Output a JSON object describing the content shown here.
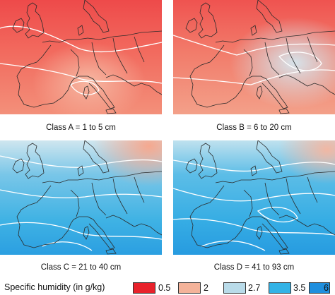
{
  "figure": {
    "panels": [
      {
        "id": "A",
        "caption": "Class A = 1 to 5 cm"
      },
      {
        "id": "B",
        "caption": "Class B = 6 to 20 cm"
      },
      {
        "id": "C",
        "caption": "Class C = 21 to 40 cm"
      },
      {
        "id": "D",
        "caption": "Class D = 41 to 93 cm"
      }
    ]
  },
  "legend": {
    "title": "Specific humidity  (in g/kg)",
    "entries": [
      {
        "label": "0.5",
        "color": "#e8222b"
      },
      {
        "label": "2",
        "color": "#f4b39a"
      },
      {
        "label": "2.7",
        "color": "#b9dbe9"
      },
      {
        "label": "3.5",
        "color": "#33b3e6"
      },
      {
        "label": "6",
        "color": "#1f8fde"
      }
    ]
  },
  "colors": {
    "red": "#ee4c4a",
    "salmon": "#f3a08a",
    "pale": "#cfe3ec",
    "cyan": "#45b7e3",
    "blue": "#2a9be0",
    "contour": "#ffffff",
    "coast": "#2b2b2b"
  }
}
